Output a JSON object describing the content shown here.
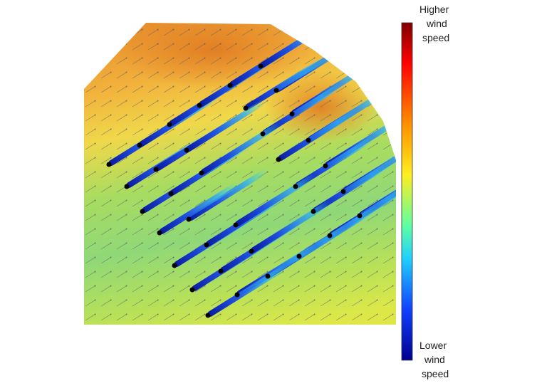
{
  "colorbar": {
    "high_label": [
      "Higher",
      "wind",
      "speed"
    ],
    "low_label": [
      "Lower",
      "wind",
      "speed"
    ]
  }
}
